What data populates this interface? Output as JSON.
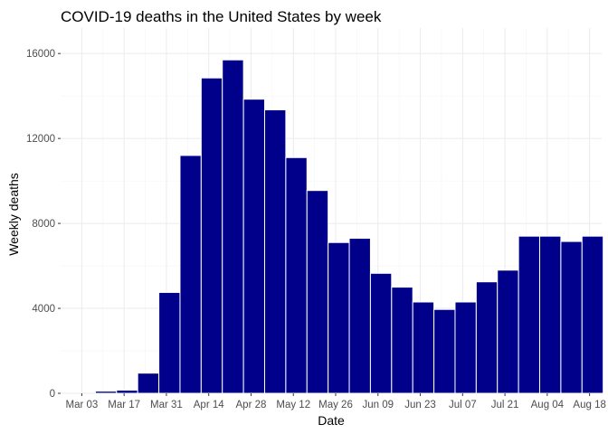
{
  "chart_data": {
    "type": "bar",
    "title": "COVID-19 deaths in the United States by week",
    "xlabel": "Date",
    "ylabel": "Weekly deaths",
    "bar_color": "#00008b",
    "bar_border_color": "#ffffff",
    "grid": true,
    "x_axis_type": "date",
    "x_tick_labels": [
      "Mar 03",
      "Mar 17",
      "Mar 31",
      "Apr 14",
      "Apr 28",
      "May 12",
      "May 26",
      "Jun 09",
      "Jun 23",
      "Jul 07",
      "Jul 21",
      "Aug 04",
      "Aug 18"
    ],
    "x_tick_dates": [
      "2020-03-03",
      "2020-03-17",
      "2020-03-31",
      "2020-04-14",
      "2020-04-28",
      "2020-05-12",
      "2020-05-26",
      "2020-06-09",
      "2020-06-23",
      "2020-07-07",
      "2020-07-21",
      "2020-08-04",
      "2020-08-18"
    ],
    "y_ticks": [
      0,
      4000,
      8000,
      12000,
      16000
    ],
    "y_tick_labels": [
      "0",
      "4000",
      "8000",
      "12000",
      "16000"
    ],
    "ylim": [
      0,
      17200
    ],
    "xlim": [
      "2020-02-25",
      "2020-08-22"
    ],
    "x": [
      "2020-03-04",
      "2020-03-11",
      "2020-03-18",
      "2020-03-25",
      "2020-04-01",
      "2020-04-08",
      "2020-04-15",
      "2020-04-22",
      "2020-04-29",
      "2020-05-06",
      "2020-05-13",
      "2020-05-20",
      "2020-05-27",
      "2020-06-03",
      "2020-06-10",
      "2020-06-17",
      "2020-06-24",
      "2020-07-01",
      "2020-07-08",
      "2020-07-15",
      "2020-07-22",
      "2020-07-29",
      "2020-08-05",
      "2020-08-12",
      "2020-08-19"
    ],
    "values": [
      0,
      100,
      150,
      950,
      4750,
      11200,
      14850,
      15700,
      13850,
      13350,
      11100,
      9550,
      7100,
      7300,
      5650,
      5000,
      4300,
      3950,
      4300,
      5250,
      5800,
      7400,
      7400,
      7150,
      7400
    ]
  }
}
